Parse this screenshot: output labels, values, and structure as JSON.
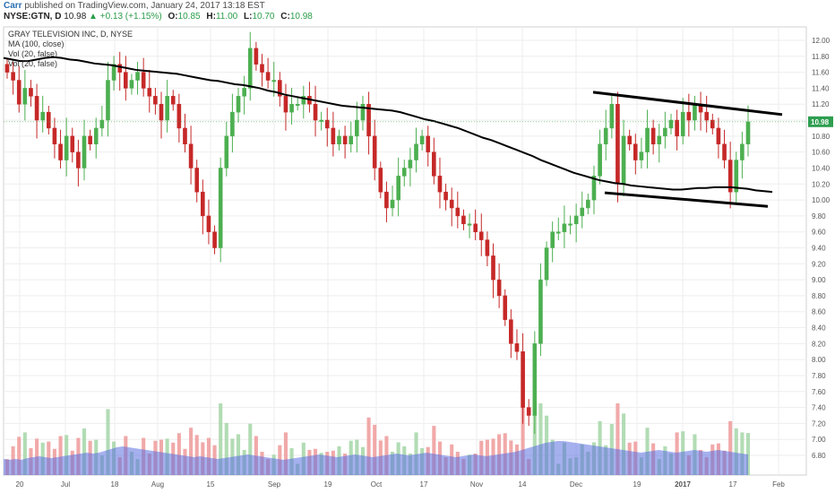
{
  "header": {
    "author": "Carr",
    "published_text": "published on TradingView.com, January 24, 2017 13:18 EST",
    "symbol": "NYSE:GTN, D",
    "last": "10.98",
    "change": "▲ +0.13 (+1.15%)",
    "ohlc": [
      {
        "k": "O:",
        "v": "10.85"
      },
      {
        "k": "H:",
        "v": "11.00"
      },
      {
        "k": "L:",
        "v": "10.70"
      },
      {
        "k": "C:",
        "v": "10.98"
      }
    ]
  },
  "legend": {
    "title": "GRAY TELEVISION INC, D, NYSE",
    "ma": "MA (100, close)",
    "vol1": "Vol (20, false)",
    "vol2": "Vol (20, false)"
  },
  "colors": {
    "up": "#4caf50",
    "up_fill": "#a5d6a7",
    "down": "#c62828",
    "down_fill": "#ef9a9a",
    "ma": "#000000",
    "vol_ma": "#5b6fe0",
    "grid": "#eeeeee",
    "text": "#555555",
    "last_badge": "#2e9e50"
  },
  "chart_data": {
    "type": "candlestick",
    "title": "GRAY TELEVISION INC, D, NYSE",
    "y_ticks": [
      "12.00",
      "11.80",
      "11.60",
      "11.40",
      "11.20",
      "11.00",
      "10.80",
      "10.60",
      "10.40",
      "10.20",
      "10.00",
      "9.80",
      "9.60",
      "9.40",
      "9.20",
      "9.00",
      "8.80",
      "8.60",
      "8.40",
      "8.20",
      "8.00",
      "7.80",
      "7.60",
      "7.40",
      "7.20",
      "7.00",
      "6.80"
    ],
    "x_ticks": [
      "20",
      "Jul",
      "18",
      "Aug",
      "15",
      "Sep",
      "19",
      "Oct",
      "17",
      "Nov",
      "14",
      "Dec",
      "19",
      "2017",
      "17",
      "Feb"
    ],
    "ylim": [
      6.7,
      12.08
    ],
    "last_price_label": "10.98",
    "closes": [
      11.6,
      11.5,
      11.2,
      11.4,
      11.3,
      11.0,
      11.1,
      10.9,
      10.7,
      10.5,
      10.8,
      10.6,
      10.4,
      10.8,
      10.7,
      10.9,
      11.0,
      11.5,
      11.7,
      11.6,
      11.4,
      11.5,
      11.6,
      11.4,
      11.3,
      11.2,
      11.0,
      11.3,
      11.2,
      10.9,
      10.7,
      10.4,
      10.1,
      9.8,
      9.6,
      9.4,
      10.4,
      10.8,
      11.1,
      11.3,
      11.4,
      11.9,
      11.7,
      11.6,
      11.5,
      11.5,
      11.3,
      11.1,
      11.2,
      11.2,
      11.3,
      11.2,
      11.0,
      11.0,
      10.9,
      10.7,
      10.8,
      10.7,
      10.8,
      11.0,
      11.2,
      10.8,
      10.4,
      10.1,
      9.9,
      10.0,
      10.3,
      10.4,
      10.5,
      10.7,
      10.8,
      10.6,
      10.3,
      10.1,
      10.0,
      9.9,
      9.8,
      9.7,
      9.7,
      9.6,
      9.5,
      9.3,
      9.0,
      8.8,
      8.5,
      8.2,
      8.1,
      7.4,
      7.3,
      8.2,
      9.0,
      9.4,
      9.6,
      9.6,
      9.7,
      9.7,
      9.8,
      9.9,
      10.0,
      10.3,
      10.7,
      10.9,
      11.2,
      10.2,
      10.8,
      10.7,
      10.5,
      10.6,
      10.9,
      10.7,
      10.8,
      10.9,
      11.0,
      10.8,
      11.1,
      11.0,
      11.2,
      11.1,
      11.0,
      10.9,
      10.7,
      10.5,
      10.1,
      10.5,
      10.7,
      10.98
    ],
    "volume_ma": [
      0.18,
      0.17,
      0.18,
      0.17,
      0.19,
      0.2,
      0.21,
      0.2,
      0.19,
      0.2,
      0.21,
      0.22,
      0.23,
      0.24,
      0.25,
      0.24,
      0.25,
      0.27,
      0.29,
      0.31,
      0.32,
      0.31,
      0.3,
      0.29,
      0.28,
      0.27,
      0.26,
      0.25,
      0.24,
      0.23,
      0.22,
      0.21,
      0.2,
      0.21,
      0.2,
      0.19,
      0.18,
      0.19,
      0.2,
      0.21,
      0.22,
      0.23,
      0.22,
      0.21,
      0.2,
      0.19,
      0.18,
      0.17,
      0.18,
      0.19,
      0.2,
      0.21,
      0.22,
      0.23,
      0.22,
      0.21,
      0.2,
      0.21,
      0.22,
      0.23,
      0.22,
      0.21,
      0.2,
      0.21,
      0.22,
      0.23,
      0.24,
      0.23,
      0.22,
      0.23,
      0.24,
      0.25,
      0.24,
      0.23,
      0.22,
      0.21,
      0.2,
      0.21,
      0.22,
      0.23,
      0.22,
      0.21,
      0.22,
      0.23,
      0.24,
      0.25,
      0.26,
      0.28,
      0.3,
      0.32,
      0.34,
      0.36,
      0.37,
      0.38,
      0.38,
      0.37,
      0.36,
      0.35,
      0.34,
      0.33,
      0.32,
      0.31,
      0.3,
      0.29,
      0.28,
      0.27,
      0.26,
      0.25,
      0.26,
      0.27,
      0.28,
      0.27,
      0.26,
      0.25,
      0.26,
      0.27,
      0.28,
      0.27,
      0.26,
      0.27,
      0.28,
      0.27,
      0.26,
      0.25,
      0.24,
      0.23
    ],
    "ma_100": [
      11.78,
      11.76,
      11.74,
      11.74,
      11.76,
      11.78,
      11.79,
      11.78,
      11.76,
      11.75,
      11.73,
      11.71,
      11.7,
      11.69,
      11.67,
      11.65,
      11.63,
      11.62,
      11.61,
      11.6,
      11.59,
      11.58,
      11.56,
      11.54,
      11.52,
      11.5,
      11.49,
      11.47,
      11.45,
      11.44,
      11.42,
      11.4,
      11.37,
      11.35,
      11.32,
      11.3,
      11.28,
      11.26,
      11.24,
      11.22,
      11.2,
      11.18,
      11.17,
      11.16,
      11.15,
      11.14,
      11.13,
      11.12,
      11.1,
      11.07,
      11.04,
      11.01,
      10.99,
      10.96,
      10.93,
      10.9,
      10.86,
      10.82,
      10.78,
      10.75,
      10.71,
      10.67,
      10.63,
      10.59,
      10.55,
      10.5,
      10.46,
      10.42,
      10.38,
      10.34,
      10.31,
      10.28,
      10.25,
      10.23,
      10.21,
      10.2,
      10.18,
      10.17,
      10.16,
      10.15,
      10.14,
      10.13,
      10.13,
      10.14,
      10.15,
      10.15,
      10.16,
      10.16,
      10.16,
      10.15,
      10.14,
      10.12,
      10.11,
      10.1
    ]
  }
}
